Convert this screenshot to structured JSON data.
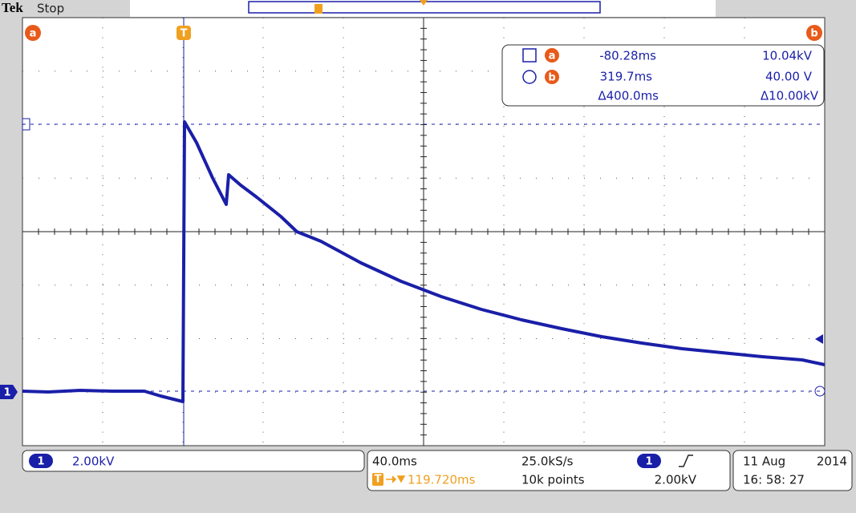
{
  "header": {
    "brand": "Tek",
    "status": "Stop"
  },
  "markers": {
    "cursor_a": "a",
    "cursor_b": "b",
    "trigger": "T"
  },
  "cursor_readout": {
    "a_time": "-80.28ms",
    "a_value": "10.04kV",
    "b_time": "319.7ms",
    "b_value": "40.00 V",
    "delta_time": "Δ400.0ms",
    "delta_value": "Δ10.00kV"
  },
  "channel": {
    "label": "1",
    "scale": "2.00kV"
  },
  "acquisition": {
    "time_scale": "40.0ms",
    "sample_rate": "25.0kS/s",
    "trigger_position": "119.720ms",
    "record_length": "10k points",
    "trigger_channel": "1",
    "trigger_level": "2.00kV"
  },
  "datetime": {
    "date": "11 Aug",
    "year": "2014",
    "time": "16: 58: 27"
  }
}
